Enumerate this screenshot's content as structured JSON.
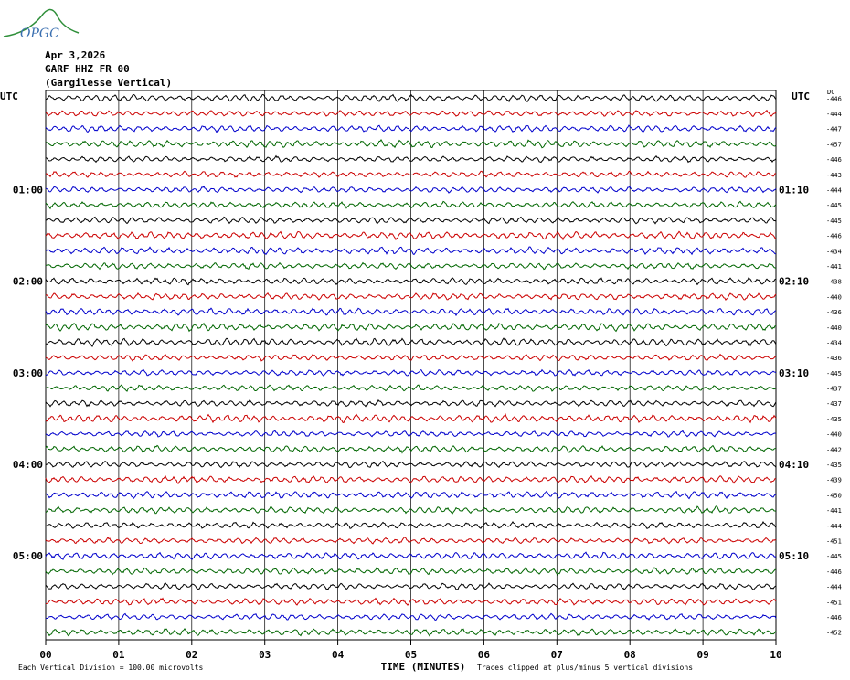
{
  "logo": {
    "text": "OPGC",
    "color": "#3a6fb0",
    "arc_color": "#2f8f3a"
  },
  "header": {
    "date": "Apr 3,2026",
    "station": "GARF HHZ FR 00",
    "site": "(Gargilesse Vertical)"
  },
  "chart_data": {
    "type": "line",
    "title": "",
    "left_axis_label": "UTC",
    "right_axis_label": "UTC",
    "dc_label": "DC",
    "xlabel": "TIME (MINUTES)",
    "xticks": [
      "00",
      "01",
      "02",
      "03",
      "04",
      "05",
      "06",
      "07",
      "08",
      "09",
      "10"
    ],
    "xlim": [
      0,
      10
    ],
    "left_time_labels": [
      {
        "row": 6,
        "label": "01:00"
      },
      {
        "row": 12,
        "label": "02:00"
      },
      {
        "row": 18,
        "label": "03:00"
      },
      {
        "row": 24,
        "label": "04:00"
      },
      {
        "row": 30,
        "label": "05:00"
      }
    ],
    "right_time_labels": [
      {
        "row": 6,
        "label": "01:10"
      },
      {
        "row": 12,
        "label": "02:10"
      },
      {
        "row": 18,
        "label": "03:10"
      },
      {
        "row": 24,
        "label": "04:10"
      },
      {
        "row": 30,
        "label": "05:10"
      }
    ],
    "trace_colors": [
      "#000000",
      "#cc0000",
      "#0000cc",
      "#006600"
    ],
    "dc_offsets": [
      -446,
      -444,
      -447,
      -457,
      -446,
      -443,
      -444,
      -445,
      -445,
      -446,
      -434,
      -441,
      -438,
      -440,
      -436,
      -440,
      -434,
      -436,
      -445,
      -437,
      -437,
      -435,
      -440,
      -442,
      -435,
      -439,
      -450,
      -441,
      -444,
      -451,
      -445,
      -446,
      -444,
      -451,
      -446,
      -452
    ],
    "grid": true,
    "footer_left": "Each Vertical Division =  100.00 microvolts",
    "footer_right": "Traces clipped at plus/minus 5 vertical divisions"
  }
}
